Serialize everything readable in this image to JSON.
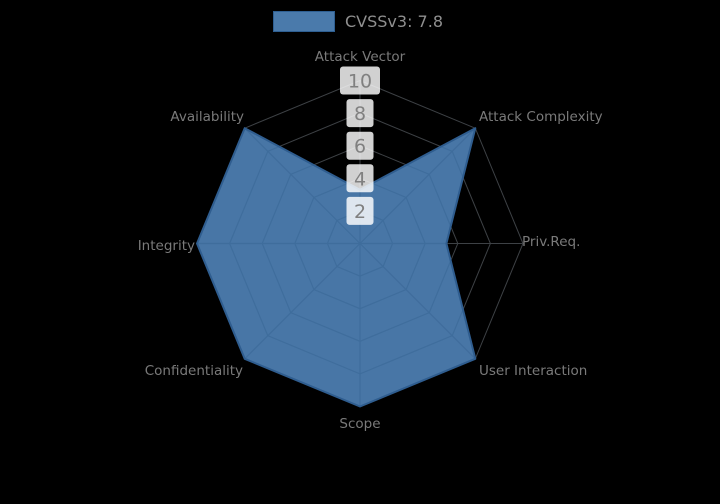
{
  "legend": {
    "label": "CVSSv3: 7.8"
  },
  "chart_data": {
    "type": "radar",
    "title": "CVSSv3: 7.8",
    "categories": [
      "Attack Vector",
      "Attack Complexity",
      "Priv.Req.",
      "User Interaction",
      "Scope",
      "Confidentiality",
      "Integrity",
      "Availability"
    ],
    "series": [
      {
        "name": "CVSSv3: 7.8",
        "values": [
          3.3,
          10,
          5.3,
          10,
          10,
          10,
          10,
          10
        ]
      }
    ],
    "radial_ticks": [
      "2",
      "4",
      "6",
      "8",
      "10"
    ],
    "range": [
      0,
      10
    ],
    "grid": true,
    "legend_position": "top-center",
    "colors": {
      "fill": "#4a7aab",
      "outline": "#2f5d8f",
      "inner_grid": "#3e6c9b",
      "outer_grid": "#9aa3ad",
      "tick_text": "#808080",
      "tick_box": "#ffffff",
      "label_text": "#7a7a7a",
      "legend_text": "#8f8f8f",
      "background": "#000000"
    }
  }
}
